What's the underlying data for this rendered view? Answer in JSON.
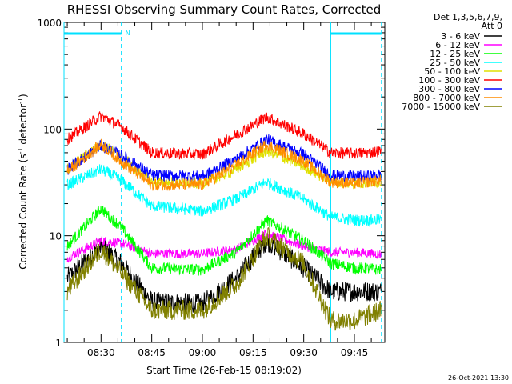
{
  "chart_data": {
    "type": "line",
    "title": "RHESSI Observing Summary Count Rates, Corrected",
    "xlabel": "Start Time (26-Feb-15 08:19:02)",
    "ylabel_main": "Corrected Count Rate (s",
    "ylabel_sup1": "-1",
    "ylabel_mid": " detector",
    "ylabel_sup2": "-1",
    "ylabel_end": ")",
    "y_scale": "log",
    "ylim": [
      1,
      1000
    ],
    "xlim": [
      "08:19:02",
      "09:54:00"
    ],
    "x_ticks": [
      "08:30",
      "08:45",
      "09:00",
      "09:15",
      "09:30",
      "09:45"
    ],
    "y_ticks": [
      "1",
      "10",
      "100",
      "1000"
    ],
    "legend_header": [
      "Det 1,3,5,6,7,9,",
      "Att 0"
    ],
    "legend_placement": "right",
    "timestamp": "26-Oct-2021 13:30",
    "flags": {
      "bar_label": "N",
      "color": "#00e0ff",
      "night_segments": [
        [
          "08:19:02",
          "08:36:00"
        ],
        [
          "09:38:00",
          "09:53:00"
        ]
      ],
      "saa_markers": [
        "08:19:02",
        "08:36:00",
        "09:38:00",
        "09:53:00"
      ]
    },
    "x_times": [
      "08:20",
      "08:30",
      "08:36",
      "08:45",
      "09:00",
      "09:10",
      "09:19",
      "09:30",
      "09:38",
      "09:45",
      "09:53"
    ],
    "series": [
      {
        "name": "3 - 6 keV",
        "color": "#000000",
        "values": [
          4.0,
          8.0,
          5.5,
          2.4,
          2.3,
          4.0,
          9.0,
          5.0,
          3.0,
          3.0,
          3.0
        ]
      },
      {
        "name": "6 - 12 keV",
        "color": "#ff00ff",
        "values": [
          6.2,
          9.0,
          8.5,
          6.8,
          6.8,
          7.5,
          10.5,
          8.0,
          7.0,
          7.0,
          6.7
        ]
      },
      {
        "name": "12 - 25 keV",
        "color": "#00ff00",
        "values": [
          8.0,
          18.0,
          12.0,
          5.0,
          4.8,
          7.0,
          14.0,
          9.0,
          5.5,
          5.0,
          4.8
        ]
      },
      {
        "name": "25 - 50 keV",
        "color": "#00ffff",
        "values": [
          30.0,
          42.0,
          33.0,
          19.0,
          17.0,
          22.0,
          32.0,
          22.0,
          15.0,
          14.0,
          14.0
        ]
      },
      {
        "name": "50 - 100 keV",
        "color": "#e0e000",
        "values": [
          42.0,
          72.0,
          55.0,
          32.0,
          31.0,
          42.0,
          63.0,
          45.0,
          32.0,
          31.0,
          32.0
        ]
      },
      {
        "name": "100 - 300 keV",
        "color": "#ff0000",
        "values": [
          80.0,
          133.0,
          105.0,
          60.0,
          58.0,
          88.0,
          130.0,
          90.0,
          60.0,
          59.0,
          62.0
        ]
      },
      {
        "name": "300 - 800 keV",
        "color": "#0000ff",
        "values": [
          42.0,
          70.0,
          57.0,
          37.0,
          36.0,
          52.0,
          80.0,
          58.0,
          37.0,
          36.0,
          37.0
        ]
      },
      {
        "name": "800 - 7000 keV",
        "color": "#ff8c00",
        "values": [
          40.0,
          72.0,
          50.0,
          30.0,
          30.0,
          46.0,
          72.0,
          50.0,
          32.0,
          31.0,
          33.0
        ]
      },
      {
        "name": "7000 - 15000 keV",
        "color": "#808000",
        "values": [
          3.0,
          7.5,
          4.5,
          2.0,
          2.0,
          3.5,
          10.0,
          5.5,
          1.6,
          1.6,
          2.0
        ]
      }
    ]
  }
}
